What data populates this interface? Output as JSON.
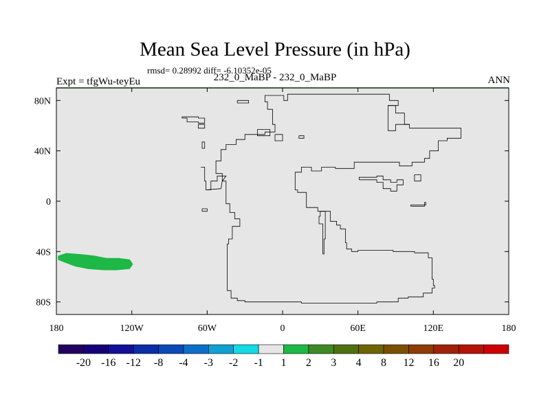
{
  "header": {
    "title": "Mean Sea Level Pressure (in hPa)",
    "stats": "rmsd= 0.28992 diff= -6.10352e-05",
    "expt": "Expt = tfgWu-teyEu",
    "difference": "232_0_MaBP - 232_0_MaBP",
    "season": "ANN"
  },
  "chart_data": {
    "type": "heatmap",
    "title": "Mean Sea Level Pressure (in hPa)",
    "xlabel": "",
    "ylabel": "",
    "xlim": [
      -180,
      180
    ],
    "ylim": [
      -90,
      90
    ],
    "x_ticks": [
      {
        "value": -180,
        "label": "180"
      },
      {
        "value": -120,
        "label": "120W"
      },
      {
        "value": -60,
        "label": "60W"
      },
      {
        "value": 0,
        "label": "0"
      },
      {
        "value": 60,
        "label": "60E"
      },
      {
        "value": 120,
        "label": "120E"
      },
      {
        "value": 180,
        "label": "180"
      }
    ],
    "y_ticks": [
      {
        "value": 80,
        "label": "80N"
      },
      {
        "value": 40,
        "label": "40N"
      },
      {
        "value": 0,
        "label": "0"
      },
      {
        "value": -40,
        "label": "40S"
      },
      {
        "value": -80,
        "label": "80S"
      }
    ],
    "background_value_bin": "-1 to 1",
    "anomalies": [
      {
        "name": "positive anomaly",
        "bin": "1 to 2",
        "color": "#1eb846",
        "outline": [
          [
            -178,
            -44
          ],
          [
            -172,
            -42
          ],
          [
            -160,
            -43
          ],
          [
            -150,
            -44
          ],
          [
            -140,
            -46
          ],
          [
            -130,
            -46
          ],
          [
            -122,
            -47
          ],
          [
            -120,
            -50
          ],
          [
            -122,
            -53
          ],
          [
            -132,
            -54
          ],
          [
            -142,
            -54
          ],
          [
            -155,
            -53
          ],
          [
            -165,
            -51
          ],
          [
            -173,
            -48
          ],
          [
            -178,
            -46
          ]
        ]
      }
    ],
    "coastlines": [
      [
        [
          15,
          -81
        ],
        [
          75,
          -81
        ],
        [
          75,
          -80
        ],
        [
          92,
          -80
        ],
        [
          92,
          -77
        ],
        [
          100,
          -77
        ],
        [
          100,
          -76
        ],
        [
          112,
          -76
        ],
        [
          112,
          -73
        ],
        [
          119,
          -73
        ],
        [
          119,
          -69
        ],
        [
          121,
          -69
        ],
        [
          121,
          -67
        ],
        [
          120,
          -67
        ],
        [
          120,
          -62
        ],
        [
          119,
          -62
        ],
        [
          119,
          -45
        ],
        [
          116,
          -45
        ],
        [
          116,
          -41
        ],
        [
          105,
          -41
        ],
        [
          105,
          -40
        ],
        [
          88,
          -40
        ],
        [
          88,
          -39
        ],
        [
          60,
          -39
        ],
        [
          60,
          -40
        ],
        [
          55,
          -40
        ],
        [
          55,
          -38
        ],
        [
          51,
          -38
        ],
        [
          51,
          -33
        ],
        [
          50,
          -33
        ],
        [
          50,
          -22
        ],
        [
          46,
          -22
        ],
        [
          46,
          -19
        ],
        [
          43,
          -19
        ],
        [
          43,
          -16
        ],
        [
          38,
          -16
        ],
        [
          38,
          -8
        ],
        [
          28,
          -8
        ],
        [
          28,
          -5
        ],
        [
          19,
          -5
        ],
        [
          19,
          7
        ],
        [
          12,
          7
        ],
        [
          12,
          9
        ],
        [
          10,
          9
        ],
        [
          10,
          23
        ],
        [
          15,
          23
        ],
        [
          15,
          27
        ],
        [
          23,
          27
        ],
        [
          23,
          24
        ],
        [
          31,
          24
        ],
        [
          31,
          27
        ],
        [
          42,
          27
        ],
        [
          42,
          26
        ],
        [
          57,
          26
        ],
        [
          57,
          31
        ],
        [
          93,
          31
        ],
        [
          93,
          28
        ],
        [
          103,
          28
        ],
        [
          103,
          31
        ],
        [
          113,
          31
        ],
        [
          113,
          34
        ],
        [
          117,
          34
        ],
        [
          117,
          40
        ],
        [
          124,
          40
        ],
        [
          124,
          48
        ],
        [
          131,
          48
        ],
        [
          131,
          50
        ],
        [
          142,
          50
        ],
        [
          142,
          58
        ],
        [
          101,
          58
        ],
        [
          101,
          61
        ],
        [
          90,
          61
        ],
        [
          90,
          56
        ],
        [
          84,
          56
        ],
        [
          84,
          76
        ],
        [
          92,
          76
        ],
        [
          92,
          80
        ],
        [
          85,
          80
        ],
        [
          85,
          85
        ],
        [
          4,
          85
        ],
        [
          4,
          80
        ],
        [
          1,
          80
        ],
        [
          1,
          84
        ],
        [
          -14,
          84
        ],
        [
          -14,
          79
        ],
        [
          -12,
          79
        ],
        [
          -12,
          73
        ],
        [
          -8,
          73
        ],
        [
          -8,
          61
        ],
        [
          -6,
          61
        ],
        [
          -6,
          55
        ],
        [
          -14,
          55
        ],
        [
          -14,
          53
        ],
        [
          -30,
          53
        ],
        [
          -30,
          49
        ],
        [
          -37,
          49
        ],
        [
          -37,
          45
        ],
        [
          -45,
          45
        ],
        [
          -45,
          41
        ],
        [
          -49,
          41
        ],
        [
          -49,
          32
        ],
        [
          -53,
          32
        ],
        [
          -53,
          22
        ],
        [
          -48,
          22
        ],
        [
          -48,
          16
        ],
        [
          -45,
          16
        ],
        [
          -45,
          -2
        ],
        [
          -42,
          -2
        ],
        [
          -42,
          -9
        ],
        [
          -38,
          -9
        ],
        [
          -38,
          -14
        ],
        [
          -34,
          -14
        ],
        [
          -34,
          -20
        ],
        [
          -40,
          -20
        ],
        [
          -40,
          -30
        ],
        [
          -43,
          -30
        ],
        [
          -43,
          -34
        ],
        [
          -44,
          -34
        ],
        [
          -44,
          -71
        ],
        [
          -41,
          -71
        ],
        [
          -41,
          -77
        ],
        [
          -36,
          -77
        ],
        [
          -36,
          -79
        ],
        [
          -30,
          -79
        ],
        [
          -30,
          -80
        ],
        [
          15,
          -80
        ],
        [
          15,
          -81
        ]
      ],
      [
        [
          32,
          -42
        ],
        [
          33,
          -42
        ],
        [
          33,
          -30
        ],
        [
          34,
          -30
        ],
        [
          34,
          -8
        ],
        [
          30,
          -8
        ],
        [
          30,
          -12
        ],
        [
          29,
          -12
        ],
        [
          29,
          -18
        ],
        [
          32,
          -18
        ],
        [
          32,
          -42
        ]
      ],
      [
        [
          -80,
          66
        ],
        [
          -76,
          66
        ],
        [
          -76,
          63
        ],
        [
          -67,
          63
        ],
        [
          -67,
          62
        ],
        [
          -62,
          62
        ],
        [
          -62,
          66
        ],
        [
          -67,
          66
        ],
        [
          -67,
          67
        ],
        [
          -80,
          67
        ],
        [
          -80,
          66
        ]
      ],
      [
        [
          -67,
          61
        ],
        [
          -62,
          61
        ],
        [
          -62,
          58
        ],
        [
          -67,
          58
        ],
        [
          -67,
          61
        ]
      ],
      [
        [
          -62,
          47
        ],
        [
          -64,
          47
        ],
        [
          -64,
          42
        ],
        [
          -62,
          42
        ],
        [
          -62,
          47
        ]
      ],
      [
        [
          -65,
          27
        ],
        [
          -62,
          27
        ],
        [
          -62,
          16
        ],
        [
          -61,
          16
        ],
        [
          -61,
          9
        ],
        [
          -57,
          9
        ],
        [
          -57,
          16
        ],
        [
          -52,
          16
        ],
        [
          -52,
          20
        ],
        [
          -45,
          20
        ],
        [
          -48,
          16
        ],
        [
          -49,
          10
        ],
        [
          -61,
          9
        ]
      ],
      [
        [
          -64,
          -6
        ],
        [
          -60,
          -6
        ],
        [
          -60,
          -8
        ],
        [
          -64,
          -8
        ],
        [
          -64,
          -6
        ]
      ],
      [
        [
          -36,
          80
        ],
        [
          -36,
          78
        ],
        [
          -27,
          78
        ],
        [
          -27,
          80
        ],
        [
          -36,
          80
        ]
      ],
      [
        [
          -20,
          57
        ],
        [
          -10,
          57
        ],
        [
          -10,
          52
        ],
        [
          -20,
          52
        ],
        [
          -20,
          57
        ]
      ],
      [
        [
          -6,
          53
        ],
        [
          0,
          53
        ],
        [
          0,
          48
        ],
        [
          -6,
          48
        ],
        [
          -6,
          53
        ]
      ],
      [
        [
          13,
          52
        ],
        [
          17,
          52
        ],
        [
          17,
          50
        ],
        [
          13,
          50
        ],
        [
          13,
          52
        ]
      ],
      [
        [
          61,
          17
        ],
        [
          75,
          17
        ],
        [
          75,
          15
        ],
        [
          80,
          15
        ],
        [
          80,
          10
        ],
        [
          86,
          10
        ],
        [
          86,
          8
        ],
        [
          91,
          8
        ],
        [
          91,
          13
        ],
        [
          96,
          13
        ],
        [
          96,
          17
        ],
        [
          91,
          17
        ],
        [
          91,
          15
        ],
        [
          86,
          15
        ],
        [
          86,
          17
        ],
        [
          80,
          17
        ],
        [
          80,
          20
        ],
        [
          75,
          20
        ],
        [
          75,
          19
        ],
        [
          61,
          19
        ],
        [
          61,
          17
        ]
      ],
      [
        [
          84,
          76
        ],
        [
          90,
          76
        ],
        [
          90,
          70
        ],
        [
          97,
          70
        ],
        [
          97,
          61
        ],
        [
          101,
          61
        ]
      ],
      [
        [
          102,
          -4
        ],
        [
          113,
          -4
        ],
        [
          113,
          -1
        ],
        [
          114,
          -1
        ],
        [
          114,
          -3
        ],
        [
          102,
          -3
        ],
        [
          102,
          -4
        ]
      ],
      [
        [
          105,
          16
        ],
        [
          110,
          16
        ],
        [
          110,
          21
        ],
        [
          105,
          21
        ],
        [
          105,
          16
        ]
      ]
    ],
    "colorbar": {
      "colors": [
        "#23005f",
        "#16007a",
        "#120f99",
        "#0c2ca8",
        "#0a49b8",
        "#0c6fc7",
        "#10a0d4",
        "#12dbe3",
        "#e6e6e6",
        "#1eb846",
        "#3d8a24",
        "#4f7010",
        "#6e6400",
        "#7a4f00",
        "#8e3b05",
        "#a02307",
        "#b41303",
        "#cc0000"
      ],
      "labels": [
        "-20",
        "-16",
        "-12",
        "-8",
        "-4",
        "-3",
        "-2",
        "-1",
        "1",
        "2",
        "3",
        "4",
        "8",
        "12",
        "16",
        "20"
      ]
    }
  }
}
